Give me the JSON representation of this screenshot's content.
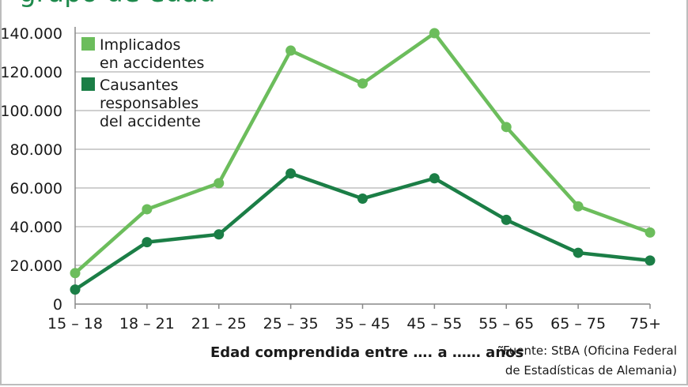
{
  "chart_data": {
    "type": "line",
    "title": "grupo de edad",
    "categories": [
      "15 – 18",
      "18 – 21",
      "21 – 25",
      "25 – 35",
      "35 – 45",
      "45 – 55",
      "55 – 65",
      "65 – 75",
      "75+"
    ],
    "series": [
      {
        "name": "Implicados en accidentes",
        "legend_lines": [
          "Implicados",
          "en accidentes"
        ],
        "color": "#6cbd5c",
        "values": [
          16000,
          49000,
          62500,
          131000,
          114000,
          140000,
          91500,
          50500,
          37000
        ]
      },
      {
        "name": "Causantes responsables del accidente",
        "legend_lines": [
          "Causantes",
          "responsables",
          "del accidente"
        ],
        "color": "#1b7e46",
        "values": [
          7500,
          32000,
          36000,
          67500,
          54500,
          65000,
          43500,
          26500,
          22500
        ]
      }
    ],
    "yticks": [
      "0",
      "20.000",
      "40.000",
      "60.000",
      "80.000",
      "100.000",
      "120.000",
      "140.000"
    ],
    "ylim": [
      0,
      140000
    ],
    "xlabel": "Edad comprendida entre …. a …… años",
    "ylabel": "",
    "grid": true,
    "legend": "top-left"
  },
  "source": [
    "Fuente: StBA (Oficina Federal",
    "de Estadísticas de Alemania)"
  ]
}
